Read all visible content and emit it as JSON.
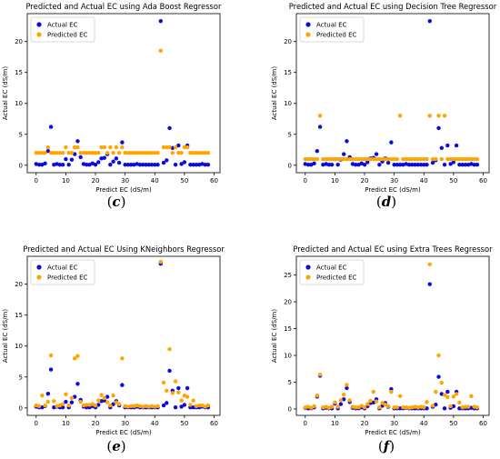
{
  "colors": {
    "actual": "#0a0ae6",
    "predicted": "#ffa500"
  },
  "captions": [
    "c",
    "d",
    "e",
    "f"
  ],
  "chart_data": [
    {
      "type": "scatter",
      "title": "Predicted and Actual EC using Ada Boost Regressor",
      "xlabel": "Predict EC (dS/m)",
      "ylabel": "Actual EC (dS/m)",
      "xlim": [
        -3,
        62
      ],
      "ylim": [
        -1.2,
        24.5
      ],
      "xticks": [
        0,
        10,
        20,
        30,
        40,
        50,
        60
      ],
      "yticks": [
        0,
        5,
        10,
        15,
        20
      ],
      "legend_position": "top-left",
      "series": [
        {
          "name": "Actual EC",
          "color": "actual",
          "x": [
            0,
            1,
            2,
            3,
            4,
            5,
            6,
            7,
            8,
            9,
            10,
            11,
            12,
            13,
            14,
            15,
            16,
            17,
            18,
            19,
            20,
            21,
            22,
            23,
            24,
            25,
            26,
            27,
            28,
            29,
            30,
            31,
            32,
            33,
            34,
            35,
            36,
            37,
            38,
            39,
            40,
            41,
            42,
            43,
            44,
            45,
            46,
            47,
            48,
            49,
            50,
            51,
            52,
            53,
            54,
            55,
            56,
            57,
            58
          ],
          "y": [
            0.2,
            0.1,
            0.1,
            0.3,
            2.3,
            6.2,
            0.1,
            0.2,
            0.1,
            0.1,
            1.0,
            0.1,
            0.9,
            1.8,
            3.9,
            1.3,
            0.2,
            0.1,
            0.1,
            0.3,
            0.1,
            0.5,
            1.1,
            1.2,
            1.8,
            0.1,
            0.6,
            1.1,
            0.4,
            3.7,
            0.1,
            0.1,
            0.1,
            0.1,
            0.2,
            0.1,
            0.1,
            0.1,
            0.1,
            0.1,
            0.1,
            0.1,
            23.3,
            0.4,
            0.8,
            6.0,
            2.8,
            0.1,
            3.2,
            0.2,
            0.5,
            3.2,
            0.1,
            0.1,
            0.1,
            0.1,
            0.2,
            0.1,
            0.1
          ]
        },
        {
          "name": "Predicted EC",
          "color": "predicted",
          "x": [
            0,
            1,
            2,
            3,
            4,
            5,
            6,
            7,
            8,
            9,
            10,
            11,
            12,
            13,
            14,
            15,
            16,
            17,
            18,
            19,
            20,
            21,
            22,
            23,
            24,
            25,
            26,
            27,
            28,
            29,
            30,
            31,
            32,
            33,
            34,
            35,
            36,
            37,
            38,
            39,
            40,
            41,
            42,
            43,
            44,
            45,
            46,
            47,
            48,
            49,
            50,
            51,
            52,
            53,
            54,
            55,
            56,
            57,
            58
          ],
          "y": [
            2.0,
            2.0,
            2.0,
            2.0,
            2.9,
            2.0,
            2.0,
            2.0,
            2.0,
            2.0,
            2.9,
            2.0,
            2.0,
            2.9,
            2.9,
            2.0,
            2.0,
            2.0,
            2.0,
            2.0,
            2.0,
            2.0,
            2.9,
            2.9,
            2.0,
            2.9,
            2.0,
            2.9,
            2.0,
            2.9,
            2.0,
            2.0,
            2.0,
            2.0,
            2.0,
            2.0,
            2.0,
            2.0,
            2.0,
            2.0,
            2.0,
            2.0,
            18.5,
            2.9,
            2.9,
            2.9,
            2.0,
            2.9,
            2.0,
            2.0,
            2.9,
            2.9,
            2.0,
            2.0,
            2.0,
            2.0,
            2.0,
            2.0,
            2.0
          ]
        }
      ]
    },
    {
      "type": "scatter",
      "title": "Predicted and Actual EC using Decision Tree Regressor",
      "xlabel": "Predict EC (dS/m)",
      "ylabel": "Actual EC (dS/m)",
      "xlim": [
        -3,
        62
      ],
      "ylim": [
        -1.2,
        24.5
      ],
      "xticks": [
        0,
        10,
        20,
        30,
        40,
        50,
        60
      ],
      "yticks": [
        0,
        5,
        10,
        15,
        20
      ],
      "legend_position": "top-left",
      "series": [
        {
          "name": "Actual EC",
          "color": "actual",
          "x": [
            0,
            1,
            2,
            3,
            4,
            5,
            6,
            7,
            8,
            9,
            10,
            11,
            12,
            13,
            14,
            15,
            16,
            17,
            18,
            19,
            20,
            21,
            22,
            23,
            24,
            25,
            26,
            27,
            28,
            29,
            30,
            31,
            32,
            33,
            34,
            35,
            36,
            37,
            38,
            39,
            40,
            41,
            42,
            43,
            44,
            45,
            46,
            47,
            48,
            49,
            50,
            51,
            52,
            53,
            54,
            55,
            56,
            57,
            58
          ],
          "y": [
            0.2,
            0.1,
            0.1,
            0.3,
            2.3,
            6.2,
            0.1,
            0.2,
            0.1,
            0.1,
            1.0,
            0.1,
            0.9,
            1.8,
            3.9,
            1.3,
            0.2,
            0.1,
            0.1,
            0.3,
            0.1,
            0.5,
            1.1,
            1.2,
            1.8,
            0.1,
            0.6,
            1.1,
            0.4,
            3.7,
            0.1,
            0.1,
            0.1,
            0.1,
            0.2,
            0.1,
            0.1,
            0.1,
            0.1,
            0.1,
            0.1,
            0.1,
            23.3,
            0.4,
            0.8,
            6.0,
            2.8,
            0.1,
            3.2,
            0.2,
            0.5,
            3.2,
            0.1,
            0.1,
            0.1,
            0.1,
            0.2,
            0.1,
            0.1
          ]
        },
        {
          "name": "Predicted EC",
          "color": "predicted",
          "x": [
            0,
            1,
            2,
            3,
            4,
            5,
            6,
            7,
            8,
            9,
            10,
            11,
            12,
            13,
            14,
            15,
            16,
            17,
            18,
            19,
            20,
            21,
            22,
            23,
            24,
            25,
            26,
            27,
            28,
            29,
            30,
            31,
            32,
            33,
            34,
            35,
            36,
            37,
            38,
            39,
            40,
            41,
            42,
            43,
            44,
            45,
            46,
            47,
            48,
            49,
            50,
            51,
            52,
            53,
            54,
            55,
            56,
            57,
            58
          ],
          "y": [
            1.0,
            1.0,
            1.0,
            1.0,
            1.0,
            8.0,
            1.0,
            1.0,
            1.0,
            1.0,
            1.0,
            1.0,
            1.0,
            1.0,
            1.0,
            1.0,
            1.0,
            1.0,
            1.0,
            1.0,
            1.0,
            1.0,
            1.0,
            1.0,
            1.0,
            1.0,
            1.0,
            1.0,
            1.0,
            1.0,
            1.0,
            1.0,
            8.0,
            1.0,
            1.0,
            1.0,
            1.0,
            1.0,
            1.0,
            1.0,
            1.0,
            1.0,
            8.0,
            1.0,
            1.0,
            8.0,
            1.0,
            8.0,
            1.0,
            1.0,
            1.0,
            1.0,
            1.0,
            1.0,
            1.0,
            1.0,
            1.0,
            1.0,
            1.0
          ]
        }
      ]
    },
    {
      "type": "scatter",
      "title": "Predicted and Actual EC Using KNeighbors Regressor",
      "xlabel": "Predict EC (dS/m)",
      "ylabel": "Actual EC (dS/m)",
      "xlim": [
        -3,
        62
      ],
      "ylim": [
        -1.2,
        24.5
      ],
      "xticks": [
        0,
        10,
        20,
        30,
        40,
        50,
        60
      ],
      "yticks": [
        0,
        5,
        10,
        15,
        20
      ],
      "legend_position": "top-left",
      "series": [
        {
          "name": "Actual EC",
          "color": "actual",
          "x": [
            0,
            1,
            2,
            3,
            4,
            5,
            6,
            7,
            8,
            9,
            10,
            11,
            12,
            13,
            14,
            15,
            16,
            17,
            18,
            19,
            20,
            21,
            22,
            23,
            24,
            25,
            26,
            27,
            28,
            29,
            30,
            31,
            32,
            33,
            34,
            35,
            36,
            37,
            38,
            39,
            40,
            41,
            42,
            43,
            44,
            45,
            46,
            47,
            48,
            49,
            50,
            51,
            52,
            53,
            54,
            55,
            56,
            57,
            58
          ],
          "y": [
            0.2,
            0.1,
            0.1,
            0.3,
            2.3,
            6.2,
            0.1,
            0.2,
            0.1,
            0.1,
            1.0,
            0.1,
            0.9,
            1.8,
            3.9,
            1.3,
            0.2,
            0.1,
            0.1,
            0.3,
            0.1,
            0.5,
            1.1,
            1.2,
            1.8,
            0.1,
            0.6,
            1.1,
            0.4,
            3.7,
            0.1,
            0.1,
            0.1,
            0.1,
            0.2,
            0.1,
            0.1,
            0.1,
            0.1,
            0.1,
            0.1,
            0.1,
            23.3,
            0.4,
            0.8,
            6.0,
            2.8,
            0.1,
            3.2,
            0.2,
            0.5,
            3.2,
            0.1,
            0.1,
            0.1,
            0.1,
            0.2,
            0.1,
            0.1
          ]
        },
        {
          "name": "Predicted EC",
          "color": "predicted",
          "x": [
            0,
            1,
            2,
            3,
            4,
            5,
            6,
            7,
            8,
            9,
            10,
            11,
            12,
            13,
            14,
            15,
            16,
            17,
            18,
            19,
            20,
            21,
            22,
            23,
            24,
            25,
            26,
            27,
            28,
            29,
            30,
            31,
            32,
            33,
            34,
            35,
            36,
            37,
            38,
            39,
            40,
            41,
            42,
            43,
            44,
            45,
            46,
            47,
            48,
            49,
            50,
            51,
            52,
            53,
            54,
            55,
            56,
            57,
            58
          ],
          "y": [
            0.4,
            0.3,
            2.0,
            0.4,
            1.0,
            8.5,
            1.1,
            0.3,
            0.4,
            0.6,
            2.2,
            0.4,
            1.6,
            8.0,
            8.4,
            1.0,
            0.4,
            0.5,
            0.5,
            0.6,
            0.4,
            1.2,
            2.1,
            1.6,
            0.9,
            0.4,
            2.0,
            0.9,
            0.6,
            8.0,
            0.3,
            0.2,
            0.3,
            0.3,
            0.4,
            0.3,
            0.2,
            0.3,
            0.2,
            0.3,
            0.2,
            0.3,
            23.6,
            4.1,
            2.8,
            9.5,
            2.4,
            4.3,
            2.5,
            1.2,
            2.0,
            1.8,
            0.5,
            1.2,
            0.3,
            0.4,
            0.4,
            0.2,
            0.4
          ]
        }
      ]
    },
    {
      "type": "scatter",
      "title": "Predicted and Actual EC using Extra Trees Regressor",
      "xlabel": "Predict EC (dS/m)",
      "ylabel": "Actual EC (dS/m)",
      "xlim": [
        -3,
        62
      ],
      "ylim": [
        -1.2,
        28.5
      ],
      "xticks": [
        0,
        10,
        20,
        30,
        40,
        50,
        60
      ],
      "yticks": [
        0,
        5,
        10,
        15,
        20,
        25
      ],
      "legend_position": "top-left",
      "series": [
        {
          "name": "Actual EC",
          "color": "actual",
          "x": [
            0,
            1,
            2,
            3,
            4,
            5,
            6,
            7,
            8,
            9,
            10,
            11,
            12,
            13,
            14,
            15,
            16,
            17,
            18,
            19,
            20,
            21,
            22,
            23,
            24,
            25,
            26,
            27,
            28,
            29,
            30,
            31,
            32,
            33,
            34,
            35,
            36,
            37,
            38,
            39,
            40,
            41,
            42,
            43,
            44,
            45,
            46,
            47,
            48,
            49,
            50,
            51,
            52,
            53,
            54,
            55,
            56,
            57,
            58
          ],
          "y": [
            0.2,
            0.1,
            0.1,
            0.3,
            2.3,
            6.2,
            0.1,
            0.2,
            0.1,
            0.1,
            1.0,
            0.1,
            0.9,
            1.8,
            3.9,
            1.3,
            0.2,
            0.1,
            0.1,
            0.3,
            0.1,
            0.5,
            1.1,
            1.2,
            1.8,
            0.1,
            0.6,
            1.1,
            0.4,
            3.7,
            0.1,
            0.1,
            0.1,
            0.1,
            0.2,
            0.1,
            0.1,
            0.1,
            0.1,
            0.1,
            0.1,
            0.1,
            23.3,
            0.4,
            0.8,
            6.0,
            2.8,
            0.1,
            3.2,
            0.2,
            0.5,
            3.2,
            0.1,
            0.1,
            0.1,
            0.1,
            0.2,
            0.1,
            0.1
          ]
        },
        {
          "name": "Predicted EC",
          "color": "predicted",
          "x": [
            0,
            1,
            2,
            3,
            4,
            5,
            6,
            7,
            8,
            9,
            10,
            11,
            12,
            13,
            14,
            15,
            16,
            17,
            18,
            19,
            20,
            21,
            22,
            23,
            24,
            25,
            26,
            27,
            28,
            29,
            30,
            31,
            32,
            33,
            34,
            35,
            36,
            37,
            38,
            39,
            40,
            41,
            42,
            43,
            44,
            45,
            46,
            47,
            48,
            49,
            50,
            51,
            52,
            53,
            54,
            55,
            56,
            57,
            58
          ],
          "y": [
            0.3,
            0.4,
            0.2,
            0.5,
            2.5,
            6.4,
            0.3,
            0.4,
            0.2,
            0.4,
            1.2,
            0.4,
            1.6,
            2.7,
            4.5,
            1.6,
            0.4,
            0.3,
            0.3,
            0.6,
            0.3,
            0.9,
            1.5,
            3.2,
            1.4,
            0.3,
            1.1,
            0.8,
            0.5,
            3.2,
            0.3,
            0.3,
            2.4,
            0.3,
            0.3,
            0.2,
            0.3,
            0.4,
            0.3,
            0.4,
            0.3,
            1.3,
            27.0,
            0.6,
            3.2,
            10.0,
            4.9,
            2.6,
            2.2,
            0.5,
            2.3,
            2.8,
            1.2,
            0.3,
            0.4,
            0.4,
            2.4,
            0.4,
            0.3
          ]
        }
      ]
    }
  ]
}
